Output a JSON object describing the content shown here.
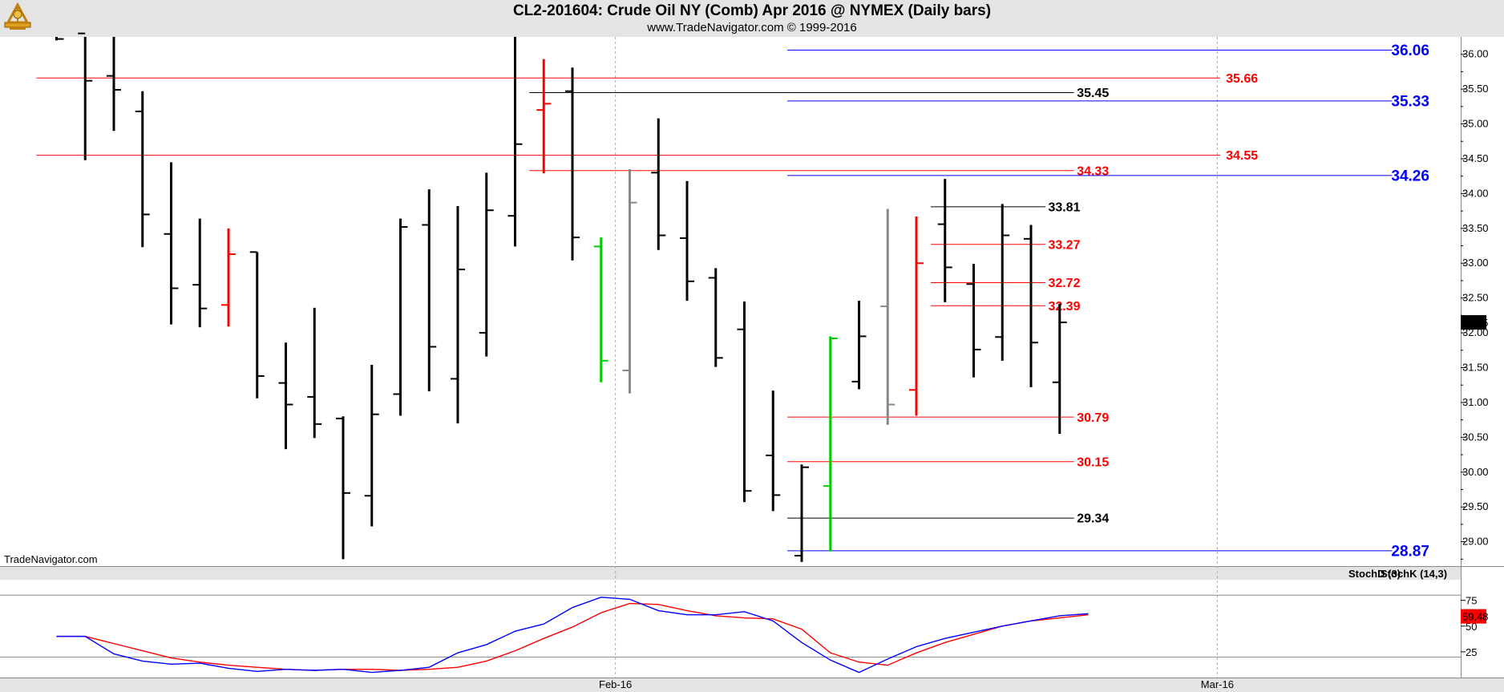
{
  "header": {
    "title": "CL2-201604:  Crude Oil NY (Comb) Apr 2016 @ NYMEX  (Daily bars)",
    "subtitle": "www.TradeNavigator.com © 1999-2016"
  },
  "watermark": "TradeNavigator.com",
  "colors": {
    "up": "#00cc00",
    "down": "#ff0000",
    "bar": "#000000",
    "gray": "#888888",
    "blue": "#0000ff",
    "red": "#ff0000"
  },
  "chart_data": [
    {
      "type": "ohlc",
      "ylim": [
        28.65,
        36.25
      ],
      "y_ticks": [
        "36.00",
        "35.50",
        "35.00",
        "34.50",
        "34.00",
        "33.50",
        "33.00",
        "32.50",
        "32.00",
        "31.50",
        "31.00",
        "30.50",
        "30.00",
        "29.50",
        "29.00"
      ],
      "x_ticks": [
        {
          "label": "Feb-16",
          "index": 19.5
        },
        {
          "label": "Mar-16",
          "index": 40.5
        }
      ],
      "last_price": "32.15",
      "bars": [
        {
          "o": null,
          "h": 36.25,
          "l": 36.2,
          "c": 36.22,
          "color": "bar"
        },
        {
          "o": 36.3,
          "h": 36.25,
          "l": 34.48,
          "c": 35.62,
          "color": "bar"
        },
        {
          "o": 35.69,
          "h": 36.25,
          "l": 34.9,
          "c": 35.49,
          "color": "bar"
        },
        {
          "o": 35.18,
          "h": 35.47,
          "l": 33.23,
          "c": 33.7,
          "color": "bar"
        },
        {
          "o": 33.42,
          "h": 34.45,
          "l": 32.12,
          "c": 32.64,
          "color": "bar"
        },
        {
          "o": 32.69,
          "h": 33.64,
          "l": 32.08,
          "c": 32.35,
          "color": "bar"
        },
        {
          "o": 32.4,
          "h": 33.5,
          "l": 32.09,
          "c": 33.13,
          "color": "down"
        },
        {
          "o": 33.16,
          "h": 33.16,
          "l": 31.06,
          "c": 31.38,
          "color": "bar"
        },
        {
          "o": 31.28,
          "h": 31.86,
          "l": 30.33,
          "c": 30.97,
          "color": "bar"
        },
        {
          "o": 31.08,
          "h": 32.36,
          "l": 30.49,
          "c": 30.69,
          "color": "bar"
        },
        {
          "o": 30.77,
          "h": 30.8,
          "l": 28.75,
          "c": 29.7,
          "color": "bar"
        },
        {
          "o": 29.66,
          "h": 31.54,
          "l": 29.22,
          "c": 30.83,
          "color": "bar"
        },
        {
          "o": 31.12,
          "h": 33.64,
          "l": 30.81,
          "c": 33.52,
          "color": "bar"
        },
        {
          "o": 33.55,
          "h": 34.06,
          "l": 31.16,
          "c": 31.8,
          "color": "bar"
        },
        {
          "o": 31.34,
          "h": 33.82,
          "l": 30.7,
          "c": 32.91,
          "color": "bar"
        },
        {
          "o": 32.0,
          "h": 34.3,
          "l": 31.66,
          "c": 33.76,
          "color": "bar"
        },
        {
          "o": 33.68,
          "h": 36.25,
          "l": 33.24,
          "c": 34.71,
          "color": "bar"
        },
        {
          "o": 35.2,
          "h": 35.93,
          "l": 34.29,
          "c": 35.29,
          "color": "down"
        },
        {
          "o": 35.47,
          "h": 35.81,
          "l": 33.04,
          "c": 33.37,
          "color": "bar"
        },
        {
          "o": 33.24,
          "h": 33.37,
          "l": 31.29,
          "c": 31.6,
          "color": "up"
        },
        {
          "o": 31.46,
          "h": 34.35,
          "l": 31.13,
          "c": 33.87,
          "color": "gray"
        },
        {
          "o": 34.3,
          "h": 35.08,
          "l": 33.19,
          "c": 33.4,
          "color": "bar"
        },
        {
          "o": 33.36,
          "h": 34.18,
          "l": 32.46,
          "c": 32.74,
          "color": "bar"
        },
        {
          "o": 32.79,
          "h": 32.93,
          "l": 31.51,
          "c": 31.64,
          "color": "bar"
        },
        {
          "o": 32.05,
          "h": 32.45,
          "l": 29.57,
          "c": 29.73,
          "color": "bar"
        },
        {
          "o": 30.24,
          "h": 31.17,
          "l": 29.44,
          "c": 29.67,
          "color": "bar"
        },
        {
          "o": 28.8,
          "h": 30.11,
          "l": 28.71,
          "c": 30.07,
          "color": "bar"
        },
        {
          "o": 29.8,
          "h": 31.95,
          "l": 28.86,
          "c": 31.92,
          "color": "up"
        },
        {
          "o": 31.3,
          "h": 32.46,
          "l": 31.19,
          "c": 31.95,
          "color": "bar"
        },
        {
          "o": 32.38,
          "h": 33.78,
          "l": 30.68,
          "c": 30.97,
          "color": "gray"
        },
        {
          "o": 31.18,
          "h": 33.67,
          "l": 30.81,
          "c": 33.0,
          "color": "down"
        },
        {
          "o": 33.56,
          "h": 34.21,
          "l": 32.44,
          "c": 32.94,
          "color": "bar"
        },
        {
          "o": 32.7,
          "h": 32.99,
          "l": 31.36,
          "c": 31.76,
          "color": "bar"
        },
        {
          "o": 31.94,
          "h": 33.85,
          "l": 31.6,
          "c": 33.4,
          "color": "bar"
        },
        {
          "o": 33.35,
          "h": 33.55,
          "l": 31.22,
          "c": 31.86,
          "color": "bar"
        },
        {
          "o": 31.29,
          "h": 32.42,
          "l": 30.55,
          "c": 32.15,
          "color": "bar"
        }
      ],
      "levels": [
        {
          "value": 36.06,
          "label": "36.06",
          "color": "blue",
          "start_index": 25.5,
          "end_index": 46.6,
          "label_index": 47.9,
          "label_align": "end",
          "size": 19
        },
        {
          "value": 35.66,
          "label": "35.66",
          "color": "red",
          "start_index": -0.7,
          "end_index": 40.6,
          "label_index": 40.8,
          "label_align": "start",
          "size": 16
        },
        {
          "value": 35.45,
          "label": "35.45",
          "color": "bar",
          "start_index": 16.5,
          "end_index": 35.5,
          "label_index": 35.6,
          "label_align": "start",
          "size": 16
        },
        {
          "value": 35.33,
          "label": "35.33",
          "color": "blue",
          "start_index": 25.5,
          "end_index": 46.6,
          "label_index": 47.9,
          "label_align": "end",
          "size": 19
        },
        {
          "value": 34.55,
          "label": "34.55",
          "color": "red",
          "start_index": -0.7,
          "end_index": 40.6,
          "label_index": 40.8,
          "label_align": "start",
          "size": 16
        },
        {
          "value": 34.33,
          "label": "34.33",
          "color": "red",
          "start_index": 16.5,
          "end_index": 35.5,
          "label_index": 35.6,
          "label_align": "start",
          "size": 16
        },
        {
          "value": 34.26,
          "label": "34.26",
          "color": "blue",
          "start_index": 25.5,
          "end_index": 46.6,
          "label_index": 47.9,
          "label_align": "end",
          "size": 19
        },
        {
          "value": 33.81,
          "label": "33.81",
          "color": "bar",
          "start_index": 30.5,
          "end_index": 34.5,
          "label_index": 34.6,
          "label_align": "start",
          "size": 16
        },
        {
          "value": 33.27,
          "label": "33.27",
          "color": "red",
          "start_index": 30.5,
          "end_index": 34.5,
          "label_index": 34.6,
          "label_align": "start",
          "size": 16
        },
        {
          "value": 32.72,
          "label": "32.72",
          "color": "red",
          "start_index": 30.5,
          "end_index": 34.5,
          "label_index": 34.6,
          "label_align": "start",
          "size": 16
        },
        {
          "value": 32.39,
          "label": "32.39",
          "color": "red",
          "start_index": 30.5,
          "end_index": 34.5,
          "label_index": 34.6,
          "label_align": "start",
          "size": 16
        },
        {
          "value": 30.79,
          "label": "30.79",
          "color": "red",
          "start_index": 25.5,
          "end_index": 35.5,
          "label_index": 35.6,
          "label_align": "start",
          "size": 16
        },
        {
          "value": 30.15,
          "label": "30.15",
          "color": "red",
          "start_index": 25.5,
          "end_index": 35.5,
          "label_index": 35.6,
          "label_align": "start",
          "size": 16
        },
        {
          "value": 29.34,
          "label": "29.34",
          "color": "bar",
          "start_index": 25.5,
          "end_index": 35.5,
          "label_index": 35.6,
          "label_align": "start",
          "size": 16
        },
        {
          "value": 28.87,
          "label": "28.87",
          "color": "blue",
          "start_index": 25.5,
          "end_index": 46.6,
          "label_index": 47.9,
          "label_align": "end",
          "size": 19
        }
      ]
    },
    {
      "type": "line",
      "ylim": [
        0,
        95
      ],
      "y_ticks": [
        "75",
        "50",
        "25"
      ],
      "ref_lines": [
        80,
        20
      ],
      "last_value": "59.48",
      "series": [
        {
          "name": "StochD (3)",
          "color": "red",
          "values": [
            40,
            40,
            33,
            26,
            19,
            15,
            12,
            10,
            8,
            7,
            8,
            8,
            7,
            8,
            10,
            16,
            26,
            38,
            49,
            63,
            72,
            71,
            65,
            60,
            58,
            57,
            47,
            24,
            15,
            12,
            24,
            34,
            42,
            50,
            55,
            58,
            61
          ]
        },
        {
          "name": "StochK (14,3)",
          "color": "blue",
          "values": [
            40,
            40,
            23,
            16,
            13,
            14,
            9,
            6,
            8,
            7,
            8,
            5,
            7,
            10,
            24,
            32,
            45,
            52,
            68,
            78,
            76,
            65,
            61,
            61,
            64,
            55,
            34,
            17,
            5,
            18,
            30,
            38,
            44,
            50,
            55,
            60,
            62
          ]
        }
      ]
    }
  ]
}
